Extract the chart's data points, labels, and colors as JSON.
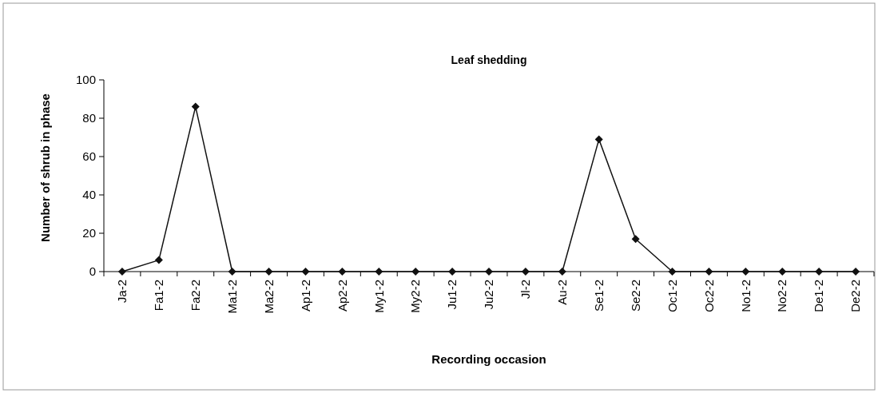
{
  "chart_data": {
    "type": "line",
    "title": "Leaf shedding",
    "xlabel": "Recording occasion",
    "ylabel": "Number of shrub in phase",
    "categories": [
      "Ja-2",
      "Fa1-2",
      "Fa2-2",
      "Ma1-2",
      "Ma2-2",
      "Ap1-2",
      "Ap2-2",
      "My1-2",
      "My2-2",
      "Ju1-2",
      "Ju2-2",
      "Jl-2",
      "Au-2",
      "Se1-2",
      "Se2-2",
      "Oc1-2",
      "Oc2-2",
      "No1-2",
      "No2-2",
      "De1-2",
      "De2-2"
    ],
    "series": [
      {
        "color": "#111111",
        "values": [
          0,
          6,
          86,
          0,
          0,
          0,
          0,
          0,
          0,
          0,
          0,
          0,
          0,
          69,
          17,
          0,
          0,
          0,
          0,
          0,
          0
        ]
      }
    ],
    "ylim": [
      0,
      100
    ],
    "yticks": [
      0,
      20,
      40,
      60,
      80,
      100
    ],
    "grid": false,
    "marker": "diamond",
    "line_style": "solid"
  }
}
